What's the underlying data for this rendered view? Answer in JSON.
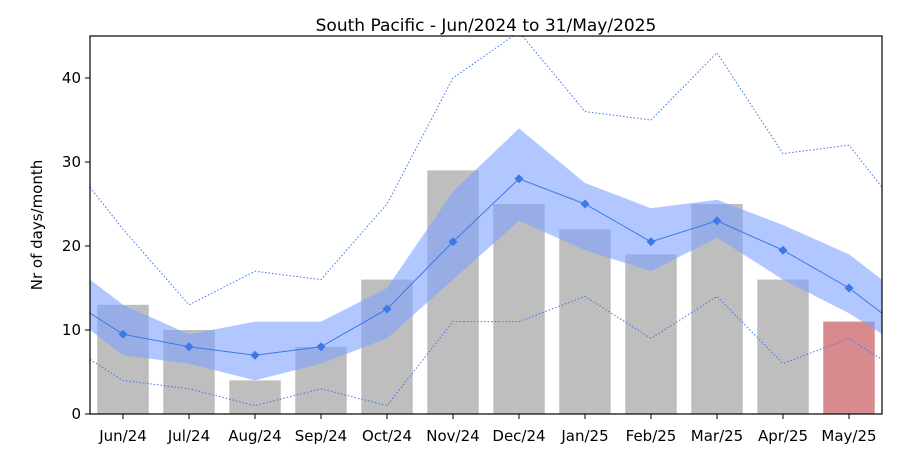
{
  "chart_data": {
    "type": "bar",
    "title": "South Pacific - Jun/2024 to 31/May/2025",
    "xlabel": "",
    "ylabel": "Nr of days/month",
    "ylim": [
      0,
      45
    ],
    "yticks": [
      0,
      10,
      20,
      30,
      40
    ],
    "categories": [
      "Jun/24",
      "Jul/24",
      "Aug/24",
      "Sep/24",
      "Oct/24",
      "Nov/24",
      "Dec/24",
      "Jan/25",
      "Feb/25",
      "Mar/25",
      "Apr/25",
      "May/25"
    ],
    "series": [
      {
        "kind": "bar",
        "values": [
          13,
          10,
          4,
          8,
          16,
          29,
          25,
          22,
          19,
          25,
          16,
          11
        ],
        "color": "#bebebe",
        "last_color": "#d98a8e"
      },
      {
        "kind": "line_markers",
        "values": [
          9.5,
          8,
          7,
          8,
          12.5,
          20.5,
          28,
          25,
          20.5,
          23,
          19.5,
          15
        ],
        "color": "#3c78e6"
      },
      {
        "kind": "band",
        "lower": [
          7,
          6,
          4,
          6,
          9,
          16,
          23,
          19.5,
          17,
          21,
          16,
          12
        ],
        "upper": [
          13,
          9.5,
          11,
          11,
          15,
          26.5,
          34,
          27.5,
          24.5,
          25.5,
          22.5,
          19
        ],
        "color": "#7ea2ff"
      },
      {
        "kind": "dotted",
        "values": [
          22,
          13,
          17,
          16,
          25,
          40,
          45.5,
          36,
          35,
          43,
          31,
          32
        ],
        "color": "#3c78e6"
      },
      {
        "kind": "dotted",
        "values": [
          4,
          3,
          1,
          3,
          1,
          11,
          11,
          14,
          9,
          14,
          6,
          9
        ],
        "color": "#3c78e6"
      }
    ],
    "edges": {
      "band_left": [
        10,
        16
      ],
      "band_right": [
        9.5,
        16
      ],
      "mean_left": 12,
      "mean_right": 12,
      "upper_left": 27,
      "upper_right": 27,
      "lower_left": 6.5,
      "lower_right": 6.5
    },
    "grid": false,
    "legend": "none"
  }
}
